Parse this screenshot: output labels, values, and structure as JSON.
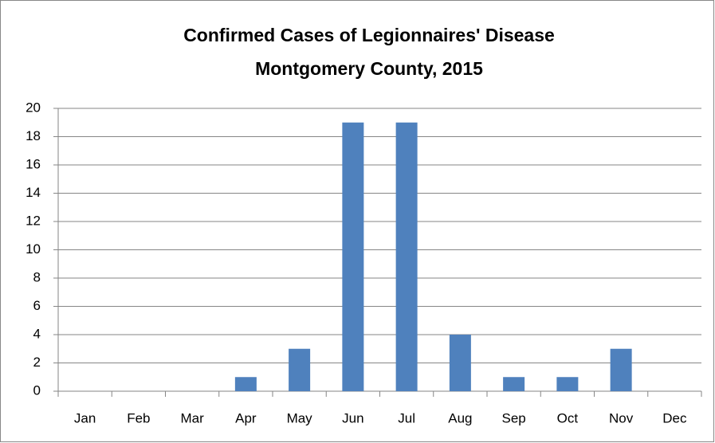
{
  "chart_data": {
    "type": "bar",
    "title": [
      "Confirmed Cases of Legionnaires' Disease",
      "Montgomery County, 2015"
    ],
    "categories": [
      "Jan",
      "Feb",
      "Mar",
      "Apr",
      "May",
      "Jun",
      "Jul",
      "Aug",
      "Sep",
      "Oct",
      "Nov",
      "Dec"
    ],
    "values": [
      0,
      0,
      0,
      1,
      3,
      19,
      19,
      4,
      1,
      1,
      3,
      0
    ],
    "color": "#4f81bd",
    "ylim": [
      0,
      20
    ],
    "yticks": [
      0,
      2,
      4,
      6,
      8,
      10,
      12,
      14,
      16,
      18,
      20
    ],
    "grid": true
  }
}
